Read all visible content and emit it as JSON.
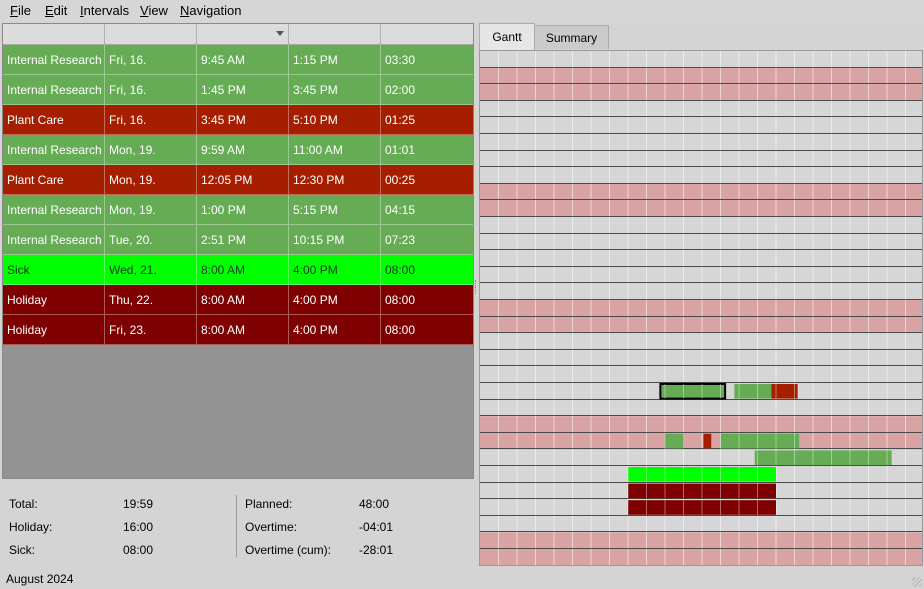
{
  "menu": [
    "File",
    "Edit",
    "Intervals",
    "View",
    "Navigation"
  ],
  "menu_mnemonics": [
    "F",
    "E",
    "I",
    "V",
    "N"
  ],
  "table": {
    "rows": [
      {
        "project": "Internal Research",
        "date": "Fri, 16.",
        "start": "9:45 AM",
        "end": "1:15 PM",
        "duration": "03:30",
        "color": "#65ac55"
      },
      {
        "project": "Internal Research",
        "date": "Fri, 16.",
        "start": "1:45 PM",
        "end": "3:45 PM",
        "duration": "02:00",
        "color": "#65ac55"
      },
      {
        "project": "Plant Care",
        "date": "Fri, 16.",
        "start": "3:45 PM",
        "end": "5:10 PM",
        "duration": "01:25",
        "color": "#a51e00"
      },
      {
        "project": "Internal Research",
        "date": "Mon, 19.",
        "start": "9:59 AM",
        "end": "11:00 AM",
        "duration": "01:01",
        "color": "#65ac55"
      },
      {
        "project": "Plant Care",
        "date": "Mon, 19.",
        "start": "12:05 PM",
        "end": "12:30 PM",
        "duration": "00:25",
        "color": "#a51e00"
      },
      {
        "project": "Internal Research",
        "date": "Mon, 19.",
        "start": "1:00 PM",
        "end": "5:15 PM",
        "duration": "04:15",
        "color": "#65ac55"
      },
      {
        "project": "Internal Research",
        "date": "Tue, 20.",
        "start": "2:51 PM",
        "end": "10:15 PM",
        "duration": "07:23",
        "color": "#65ac55"
      },
      {
        "project": "Sick",
        "date": "Wed, 21.",
        "start": "8:00 AM",
        "end": "4:00 PM",
        "duration": "08:00",
        "color": "#00ff00",
        "text": "#1a3a1a"
      },
      {
        "project": "Holiday",
        "date": "Thu, 22.",
        "start": "8:00 AM",
        "end": "4:00 PM",
        "duration": "08:00",
        "color": "#7f0000"
      },
      {
        "project": "Holiday",
        "date": "Fri, 23.",
        "start": "8:00 AM",
        "end": "4:00 PM",
        "duration": "08:00",
        "color": "#7f0000"
      }
    ]
  },
  "summary": {
    "total_label": "Total:",
    "total_value": "19:59",
    "holiday_label": "Holiday:",
    "holiday_value": "16:00",
    "sick_label": "Sick:",
    "sick_value": "08:00",
    "planned_label": "Planned:",
    "planned_value": "48:00",
    "overtime_label": "Overtime:",
    "overtime_value": "-04:01",
    "overtime_cum_label": "Overtime (cum):",
    "overtime_cum_value": "-28:01"
  },
  "footer": {
    "month": "August 2024"
  },
  "tabs": [
    {
      "label": "Gantt",
      "active": true
    },
    {
      "label": "Summary",
      "active": false
    }
  ],
  "gantt": {
    "day_rows": 30,
    "weekend_rows": [
      [
        2,
        3
      ],
      [
        9,
        10
      ],
      [
        16,
        17
      ],
      [
        23,
        24
      ],
      [
        30,
        31
      ]
    ],
    "bars": [
      {
        "row": 21,
        "start": 9.75,
        "end": 13.25,
        "type": "internal-research",
        "selected": true
      },
      {
        "row": 21,
        "start": 13.75,
        "end": 15.75,
        "type": "internal-research"
      },
      {
        "row": 21,
        "start": 15.75,
        "end": 17.17,
        "type": "plant-care"
      },
      {
        "row": 24,
        "start": 9.98,
        "end": 11.0,
        "type": "internal-research"
      },
      {
        "row": 24,
        "start": 12.08,
        "end": 12.5,
        "type": "plant-care"
      },
      {
        "row": 24,
        "start": 13.0,
        "end": 17.25,
        "type": "internal-research"
      },
      {
        "row": 25,
        "start": 14.85,
        "end": 22.25,
        "type": "internal-research"
      },
      {
        "row": 26,
        "start": 8.0,
        "end": 16.0,
        "type": "sick"
      },
      {
        "row": 27,
        "start": 8.0,
        "end": 16.0,
        "type": "holiday"
      },
      {
        "row": 28,
        "start": 8.0,
        "end": 16.0,
        "type": "holiday"
      }
    ],
    "colors": {
      "internal-research": "#65ac55",
      "plant-care": "#a51e00",
      "sick": "#00ff00",
      "holiday": "#7f0000",
      "weekend": "#d9a3a3",
      "weekday": "#d6d6d6"
    }
  }
}
